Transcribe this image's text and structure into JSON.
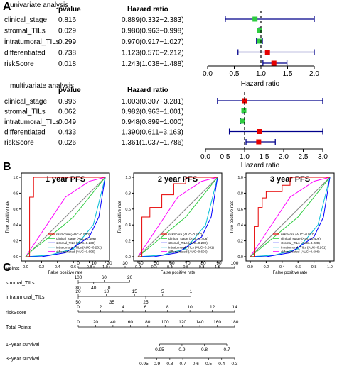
{
  "panel_labels": {
    "A": "A",
    "B": "B",
    "C": "C"
  },
  "colors": {
    "ci_line": "#00008b",
    "ref_line": "#000000",
    "forest_markers": [
      "#2ecc40",
      "#2ecc40",
      "#2ecc40",
      "#e60000",
      "#e60000"
    ],
    "multi_markers": [
      "#e60000",
      "#2ecc40",
      "#2ecc40",
      "#e60000",
      "#e60000"
    ],
    "roc": {
      "riskScore": "#e60000",
      "clinical_stage": "#2ecc40",
      "stromal_TILs": "#0000ff",
      "intratumoral_TILs": "#00bcd4",
      "differentiated": "#ff00ff",
      "diagonal": "#888888"
    }
  },
  "univariate": {
    "title": "univariate analysis",
    "pvalue_header": "pvalue",
    "hr_header": "Hazard ratio",
    "xlabel": "Hazard ratio",
    "xticks": [
      "0.0",
      "0.5",
      "1.0",
      "1.5",
      "2.0"
    ],
    "rows": [
      {
        "name": "clinical_stage",
        "p": "0.816",
        "hr_text": "0.889(0.332−2.383)"
      },
      {
        "name": "stromal_TILs",
        "p": "0.029",
        "hr_text": "0.980(0.963−0.998)"
      },
      {
        "name": "intratumoral_TILs",
        "p": "0.299",
        "hr_text": "0.970(0.917−1.027)"
      },
      {
        "name": "differentiated",
        "p": "0.738",
        "hr_text": "1.123(0.570−2.212)"
      },
      {
        "name": "riskScore",
        "p": "0.018",
        "hr_text": "1.243(1.038−1.488)"
      }
    ]
  },
  "multivariate": {
    "title": "multivariate  analysis",
    "pvalue_header": "pvalue",
    "hr_header": "Hazard ratio",
    "xlabel": "Hazard ratio",
    "xticks": [
      "0.0",
      "0.5",
      "1.0",
      "1.5",
      "2.0",
      "2.5",
      "3.0"
    ],
    "rows": [
      {
        "name": "clinical_stage",
        "p": "0.996",
        "hr_text": "1.003(0.307−3.281)"
      },
      {
        "name": "stromal_TILs",
        "p": "0.062",
        "hr_text": "0.982(0.963−1.001)"
      },
      {
        "name": "intratumoral_TILs",
        "p": "0.049",
        "hr_text": "0.948(0.899−1.000)"
      },
      {
        "name": "differentiated",
        "p": "0.433",
        "hr_text": "1.390(0.611−3.163)"
      },
      {
        "name": "riskScore",
        "p": "0.026",
        "hr_text": "1.361(1.037−1.786)"
      }
    ]
  },
  "roc_axis": {
    "xlabel": "False positive rate",
    "ylabel": "True positive rate",
    "ticks": [
      "0.0",
      "0.2",
      "0.4",
      "0.6",
      "0.8",
      "1.0"
    ]
  },
  "nomogram": {
    "rows": [
      {
        "label": "Points",
        "ticks": [
          "0",
          "10",
          "20",
          "30",
          "40",
          "50",
          "60",
          "70",
          "80",
          "90",
          "100"
        ]
      },
      {
        "label": "stromal_TILs",
        "ticks_top": [
          "100",
          "60",
          "20"
        ],
        "ticks_bottom": [
          "80",
          "40",
          "0"
        ]
      },
      {
        "label": "intratumoral_TILs",
        "ticks_top": [
          "20",
          "10",
          "15",
          "5",
          "1"
        ],
        "ticks_bottom": [
          "50",
          "35",
          "25"
        ]
      },
      {
        "label": "riskScore",
        "ticks": [
          "0",
          "2",
          "4",
          "6",
          "8",
          "10",
          "12",
          "14"
        ]
      },
      {
        "label": "Total Points",
        "ticks": [
          "0",
          "20",
          "40",
          "60",
          "80",
          "100",
          "120",
          "140",
          "160",
          "180"
        ]
      },
      {
        "label": "1−year survival",
        "ticks": [
          "0.95",
          "0.9",
          "0.8",
          "0.7"
        ]
      },
      {
        "label": "3−year survival",
        "ticks": [
          "0.95",
          "0.9",
          "0.8",
          "0.7",
          "0.6",
          "0.5",
          "0.4",
          "0.3"
        ]
      }
    ]
  },
  "chart_data": [
    {
      "type": "forest",
      "title": "univariate analysis",
      "xlabel": "Hazard ratio",
      "xlim": [
        0,
        2.0
      ],
      "reference": 1.0,
      "categories": [
        "clinical_stage",
        "stromal_TILs",
        "intratumoral_TILs",
        "differentiated",
        "riskScore"
      ],
      "pvalue": [
        0.816,
        0.029,
        0.299,
        0.738,
        0.018
      ],
      "hr": [
        0.889,
        0.98,
        0.97,
        1.123,
        1.243
      ],
      "lower": [
        0.332,
        0.963,
        0.917,
        0.57,
        1.038
      ],
      "upper": [
        2.383,
        0.998,
        1.027,
        2.212,
        1.488
      ]
    },
    {
      "type": "forest",
      "title": "multivariate  analysis",
      "xlabel": "Hazard ratio",
      "xlim": [
        0,
        3.0
      ],
      "reference": 1.0,
      "categories": [
        "clinical_stage",
        "stromal_TILs",
        "intratumoral_TILs",
        "differentiated",
        "riskScore"
      ],
      "pvalue": [
        0.996,
        0.062,
        0.049,
        0.433,
        0.026
      ],
      "hr": [
        1.003,
        0.982,
        0.948,
        1.39,
        1.361
      ],
      "lower": [
        0.307,
        0.963,
        0.899,
        0.611,
        1.037
      ],
      "upper": [
        3.281,
        1.001,
        1.0,
        3.163,
        1.786
      ]
    },
    {
      "type": "line",
      "title": "1 year PFS",
      "xlabel": "False positive rate",
      "ylabel": "True positive rate",
      "xlim": [
        0,
        1
      ],
      "ylim": [
        0,
        1
      ],
      "legend_position": "bottom-right",
      "series": [
        {
          "name": "riskScore (AUC=0.920)",
          "key": "riskScore",
          "x": [
            0,
            0.05,
            0.05,
            0.1,
            0.1,
            1.0
          ],
          "y": [
            0,
            0,
            0.75,
            0.75,
            1.0,
            1.0
          ]
        },
        {
          "name": "clinical_stage (AUC=0.406)",
          "key": "clinical_stage",
          "x": [
            0,
            0.08,
            0.3,
            0.6,
            1.0
          ],
          "y": [
            0,
            0.08,
            0.25,
            0.5,
            1.0
          ]
        },
        {
          "name": "stromal_TILs (AUC=0.239)",
          "key": "stromal_TILs",
          "x": [
            0,
            0.2,
            0.5,
            0.8,
            0.92,
            1.0
          ],
          "y": [
            0,
            0.0,
            0.05,
            0.25,
            0.5,
            1.0
          ]
        },
        {
          "name": "intratumoral_TILs (AUC=0.261)",
          "key": "intratumoral_TILs",
          "x": [
            0,
            0.3,
            0.6,
            0.85,
            1.0
          ],
          "y": [
            0,
            0.02,
            0.1,
            0.4,
            1.0
          ]
        },
        {
          "name": "differentiated (AUC=0.606)",
          "key": "differentiated",
          "x": [
            0,
            0.2,
            0.5,
            0.8,
            1.0
          ],
          "y": [
            0,
            0.3,
            0.75,
            0.95,
            1.0
          ]
        }
      ]
    },
    {
      "type": "line",
      "title": "2 year PFS",
      "xlabel": "False positive rate",
      "ylabel": "True positive rate",
      "xlim": [
        0,
        1
      ],
      "ylim": [
        0,
        1
      ],
      "legend_position": "bottom-right",
      "series": [
        {
          "name": "riskScore (AUC=0.847)",
          "key": "riskScore",
          "x": [
            0,
            0.05,
            0.05,
            0.15,
            0.15,
            0.3,
            0.3,
            0.45,
            0.45,
            0.6,
            0.6,
            0.9,
            1.0
          ],
          "y": [
            0,
            0,
            0.5,
            0.5,
            0.62,
            0.62,
            0.78,
            0.78,
            0.92,
            0.92,
            1.0,
            1.0,
            1.0
          ]
        },
        {
          "name": "clinical_stage (AUC=0.406)",
          "key": "clinical_stage",
          "x": [
            0,
            0.1,
            0.3,
            0.6,
            1.0
          ],
          "y": [
            0,
            0.08,
            0.25,
            0.5,
            1.0
          ]
        },
        {
          "name": "stromal_TILs (AUC=0.239)",
          "key": "stromal_TILs",
          "x": [
            0,
            0.2,
            0.5,
            0.8,
            0.92,
            1.0
          ],
          "y": [
            0,
            0.0,
            0.05,
            0.25,
            0.5,
            1.0
          ]
        },
        {
          "name": "intratumoral_TILs (AUC=0.261)",
          "key": "intratumoral_TILs",
          "x": [
            0,
            0.3,
            0.6,
            0.85,
            1.0
          ],
          "y": [
            0,
            0.02,
            0.1,
            0.4,
            1.0
          ]
        },
        {
          "name": "differentiated (AUC=0.606)",
          "key": "differentiated",
          "x": [
            0,
            0.2,
            0.5,
            0.8,
            1.0
          ],
          "y": [
            0,
            0.3,
            0.75,
            0.95,
            1.0
          ]
        }
      ]
    },
    {
      "type": "line",
      "title": "3 year PFS",
      "xlabel": "False positive rate",
      "ylabel": "True positive rate",
      "xlim": [
        0,
        1
      ],
      "ylim": [
        0,
        1
      ],
      "legend_position": "bottom-right",
      "series": [
        {
          "name": "riskScore (AUC=0.817)",
          "key": "riskScore",
          "x": [
            0,
            0.05,
            0.05,
            0.1,
            0.1,
            0.15,
            0.15,
            0.2,
            0.2,
            0.4,
            0.4,
            0.5,
            0.5,
            0.8,
            1.0
          ],
          "y": [
            0,
            0,
            0.38,
            0.38,
            0.62,
            0.62,
            0.74,
            0.74,
            0.82,
            0.82,
            0.9,
            0.9,
            1.0,
            1.0,
            1.0
          ]
        },
        {
          "name": "clinical_stage (AUC=0.406)",
          "key": "clinical_stage",
          "x": [
            0,
            0.1,
            0.3,
            0.6,
            1.0
          ],
          "y": [
            0,
            0.08,
            0.25,
            0.5,
            1.0
          ]
        },
        {
          "name": "stromal_TILs (AUC=0.239)",
          "key": "stromal_TILs",
          "x": [
            0,
            0.2,
            0.5,
            0.8,
            0.92,
            1.0
          ],
          "y": [
            0,
            0.0,
            0.05,
            0.25,
            0.5,
            1.0
          ]
        },
        {
          "name": "intratumoral_TILs (AUC=0.261)",
          "key": "intratumoral_TILs",
          "x": [
            0,
            0.3,
            0.6,
            0.85,
            1.0
          ],
          "y": [
            0,
            0.02,
            0.1,
            0.4,
            1.0
          ]
        },
        {
          "name": "differentiated (AUC=0.606)",
          "key": "differentiated",
          "x": [
            0,
            0.2,
            0.5,
            0.8,
            1.0
          ],
          "y": [
            0,
            0.3,
            0.75,
            0.95,
            1.0
          ]
        }
      ]
    }
  ]
}
